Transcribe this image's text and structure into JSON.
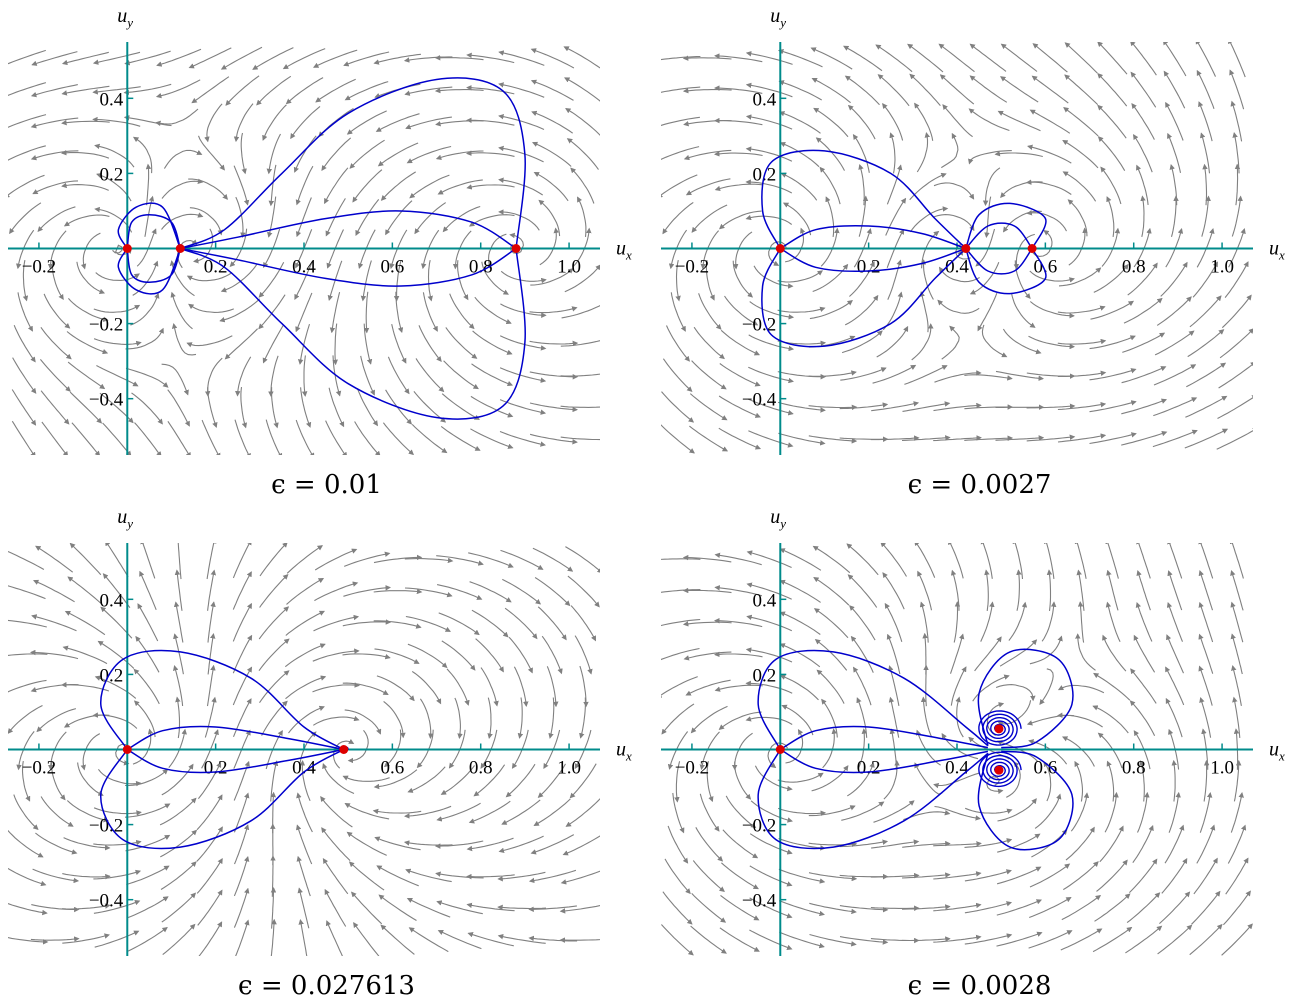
{
  "chart_data": [
    {
      "type": "stream",
      "caption": "ϵ = 0.01",
      "xlabel": "u",
      "xlabel_sub": "x",
      "ylabel": "u",
      "ylabel_sub": "y",
      "xlim": [
        -0.27,
        1.07
      ],
      "ylim": [
        -0.55,
        0.55
      ],
      "xticks": [
        -0.2,
        0.2,
        0.4,
        0.6,
        0.8,
        1.0
      ],
      "xtick_labels": [
        "−0.2",
        "0.2",
        "0.4",
        "0.6",
        "0.8",
        "1.0"
      ],
      "yticks": [
        0.4,
        0.2,
        -0.2,
        -0.4
      ],
      "ytick_labels": [
        "0.4",
        "0.2",
        "−0.2",
        "−0.4"
      ],
      "fixed_points": [
        [
          0,
          0
        ],
        [
          0.12,
          0
        ],
        [
          0.88,
          0
        ]
      ],
      "colors": {
        "axis": "#008b8b",
        "stream": "#808080",
        "separatrix": "#0000cc",
        "fixed_point": "#dd0000"
      },
      "separatrices": [
        [
          [
            0.12,
            0
          ],
          [
            0.22,
            0.05
          ],
          [
            0.35,
            0.2
          ],
          [
            0.5,
            0.36
          ],
          [
            0.7,
            0.45
          ],
          [
            0.85,
            0.42
          ],
          [
            0.9,
            0.25
          ],
          [
            0.88,
            0
          ]
        ],
        [
          [
            0.12,
            0
          ],
          [
            0.25,
            0.03
          ],
          [
            0.45,
            0.08
          ],
          [
            0.62,
            0.1
          ],
          [
            0.78,
            0.07
          ],
          [
            0.88,
            0
          ]
        ],
        [
          [
            0.12,
            0
          ],
          [
            0.25,
            -0.03
          ],
          [
            0.45,
            -0.08
          ],
          [
            0.62,
            -0.1
          ],
          [
            0.78,
            -0.07
          ],
          [
            0.88,
            0
          ]
        ],
        [
          [
            0.12,
            0
          ],
          [
            0.22,
            -0.05
          ],
          [
            0.35,
            -0.2
          ],
          [
            0.5,
            -0.36
          ],
          [
            0.7,
            -0.45
          ],
          [
            0.85,
            -0.42
          ],
          [
            0.9,
            -0.25
          ],
          [
            0.88,
            0
          ]
        ],
        [
          [
            0,
            0
          ],
          [
            -0.02,
            0.05
          ],
          [
            0.02,
            0.11
          ],
          [
            0.08,
            0.11
          ],
          [
            0.12,
            0
          ]
        ],
        [
          [
            0,
            0
          ],
          [
            -0.02,
            -0.05
          ],
          [
            0.02,
            -0.11
          ],
          [
            0.08,
            -0.11
          ],
          [
            0.12,
            0
          ]
        ],
        [
          [
            0,
            0
          ],
          [
            0.01,
            0.07
          ],
          [
            0.05,
            0.09
          ],
          [
            0.1,
            0.07
          ],
          [
            0.12,
            0
          ]
        ],
        [
          [
            0,
            0
          ],
          [
            0.01,
            -0.07
          ],
          [
            0.05,
            -0.09
          ],
          [
            0.1,
            -0.07
          ],
          [
            0.12,
            0
          ]
        ]
      ],
      "spirals": []
    },
    {
      "type": "stream",
      "caption": "ϵ = 0.0027",
      "xlabel": "u",
      "xlabel_sub": "x",
      "ylabel": "u",
      "ylabel_sub": "y",
      "xlim": [
        -0.27,
        1.07
      ],
      "ylim": [
        -0.55,
        0.55
      ],
      "xticks": [
        -0.2,
        0.2,
        0.4,
        0.6,
        0.8,
        1.0
      ],
      "xtick_labels": [
        "−0.2",
        "0.2",
        "0.4",
        "0.6",
        "0.8",
        "1.0"
      ],
      "yticks": [
        0.4,
        0.2,
        -0.2,
        -0.4
      ],
      "ytick_labels": [
        "0.4",
        "0.2",
        "−0.2",
        "−0.4"
      ],
      "fixed_points": [
        [
          0,
          0
        ],
        [
          0.42,
          0
        ],
        [
          0.57,
          0
        ]
      ],
      "colors": {
        "axis": "#008b8b",
        "stream": "#808080",
        "separatrix": "#0000cc",
        "fixed_point": "#dd0000"
      },
      "separatrices": [
        [
          [
            0,
            0
          ],
          [
            -0.04,
            0.1
          ],
          [
            -0.02,
            0.23
          ],
          [
            0.1,
            0.26
          ],
          [
            0.25,
            0.2
          ],
          [
            0.35,
            0.08
          ],
          [
            0.42,
            0
          ]
        ],
        [
          [
            0,
            0
          ],
          [
            0.08,
            0.05
          ],
          [
            0.2,
            0.06
          ],
          [
            0.32,
            0.04
          ],
          [
            0.42,
            0
          ]
        ],
        [
          [
            0,
            0
          ],
          [
            -0.04,
            -0.1
          ],
          [
            -0.02,
            -0.23
          ],
          [
            0.1,
            -0.26
          ],
          [
            0.25,
            -0.2
          ],
          [
            0.35,
            -0.08
          ],
          [
            0.42,
            0
          ]
        ],
        [
          [
            0,
            0
          ],
          [
            0.08,
            -0.05
          ],
          [
            0.2,
            -0.06
          ],
          [
            0.32,
            -0.04
          ],
          [
            0.42,
            0
          ]
        ],
        [
          [
            0.42,
            0
          ],
          [
            0.45,
            0.09
          ],
          [
            0.52,
            0.12
          ],
          [
            0.6,
            0.08
          ],
          [
            0.57,
            0
          ]
        ],
        [
          [
            0.42,
            0
          ],
          [
            0.45,
            -0.09
          ],
          [
            0.52,
            -0.12
          ],
          [
            0.6,
            -0.08
          ],
          [
            0.57,
            0
          ]
        ],
        [
          [
            0.42,
            0
          ],
          [
            0.47,
            0.06
          ],
          [
            0.53,
            0.06
          ],
          [
            0.57,
            0
          ]
        ],
        [
          [
            0.42,
            0
          ],
          [
            0.47,
            -0.06
          ],
          [
            0.53,
            -0.06
          ],
          [
            0.57,
            0
          ]
        ]
      ],
      "spirals": []
    },
    {
      "type": "stream",
      "caption": "ϵ = 0.027613",
      "xlabel": "u",
      "xlabel_sub": "x",
      "ylabel": "u",
      "ylabel_sub": "y",
      "xlim": [
        -0.27,
        1.07
      ],
      "ylim": [
        -0.55,
        0.55
      ],
      "xticks": [
        -0.2,
        0.2,
        0.4,
        0.6,
        0.8,
        1.0
      ],
      "xtick_labels": [
        "−0.2",
        "0.2",
        "0.4",
        "0.6",
        "0.8",
        "1.0"
      ],
      "yticks": [
        0.4,
        0.2,
        -0.2,
        -0.4
      ],
      "ytick_labels": [
        "0.4",
        "0.2",
        "−0.2",
        "−0.4"
      ],
      "fixed_points": [
        [
          0,
          0
        ],
        [
          0.49,
          0
        ]
      ],
      "colors": {
        "axis": "#008b8b",
        "stream": "#808080",
        "separatrix": "#0000cc",
        "fixed_point": "#dd0000"
      },
      "separatrices": [
        [
          [
            0,
            0
          ],
          [
            -0.06,
            0.12
          ],
          [
            -0.01,
            0.24
          ],
          [
            0.12,
            0.26
          ],
          [
            0.28,
            0.19
          ],
          [
            0.4,
            0.06
          ],
          [
            0.49,
            0
          ]
        ],
        [
          [
            0,
            0
          ],
          [
            0.08,
            0.05
          ],
          [
            0.2,
            0.06
          ],
          [
            0.36,
            0.03
          ],
          [
            0.49,
            0
          ]
        ],
        [
          [
            0,
            0
          ],
          [
            -0.06,
            -0.12
          ],
          [
            -0.01,
            -0.24
          ],
          [
            0.12,
            -0.26
          ],
          [
            0.28,
            -0.19
          ],
          [
            0.4,
            -0.06
          ],
          [
            0.49,
            0
          ]
        ],
        [
          [
            0,
            0
          ],
          [
            0.08,
            -0.05
          ],
          [
            0.2,
            -0.06
          ],
          [
            0.36,
            -0.03
          ],
          [
            0.49,
            0
          ]
        ]
      ],
      "spirals": [
        {
          "center": [
            0.49,
            0
          ],
          "r0": 0.02,
          "turns": 1
        }
      ]
    },
    {
      "type": "stream",
      "caption": "ϵ = 0.0028",
      "xlabel": "u",
      "xlabel_sub": "x",
      "ylabel": "u",
      "ylabel_sub": "y",
      "xlim": [
        -0.27,
        1.07
      ],
      "ylim": [
        -0.55,
        0.55
      ],
      "xticks": [
        -0.2,
        0.2,
        0.4,
        0.6,
        0.8,
        1.0
      ],
      "xtick_labels": [
        "−0.2",
        "0.2",
        "0.4",
        "0.6",
        "0.8",
        "1.0"
      ],
      "yticks": [
        0.4,
        0.2,
        -0.2,
        -0.4
      ],
      "ytick_labels": [
        "0.4",
        "0.2",
        "−0.2",
        "−0.4"
      ],
      "fixed_points": [
        [
          0,
          0
        ],
        [
          0.495,
          0.055
        ],
        [
          0.495,
          -0.055
        ]
      ],
      "colors": {
        "axis": "#008b8b",
        "stream": "#808080",
        "separatrix": "#0000cc",
        "fixed_point": "#dd0000"
      },
      "separatrices": [
        [
          [
            0,
            0
          ],
          [
            -0.05,
            0.12
          ],
          [
            -0.01,
            0.24
          ],
          [
            0.12,
            0.26
          ],
          [
            0.28,
            0.19
          ],
          [
            0.42,
            0.06
          ],
          [
            0.47,
            0.01
          ]
        ],
        [
          [
            0,
            0
          ],
          [
            0.08,
            0.05
          ],
          [
            0.2,
            0.06
          ],
          [
            0.36,
            0.03
          ],
          [
            0.47,
            0.005
          ]
        ],
        [
          [
            0,
            0
          ],
          [
            -0.05,
            -0.12
          ],
          [
            -0.01,
            -0.24
          ],
          [
            0.12,
            -0.26
          ],
          [
            0.28,
            -0.19
          ],
          [
            0.42,
            -0.06
          ],
          [
            0.47,
            -0.01
          ]
        ],
        [
          [
            0,
            0
          ],
          [
            0.08,
            -0.05
          ],
          [
            0.2,
            -0.06
          ],
          [
            0.36,
            -0.03
          ],
          [
            0.47,
            -0.005
          ]
        ],
        [
          [
            0.47,
            0.01
          ],
          [
            0.45,
            0.15
          ],
          [
            0.52,
            0.26
          ],
          [
            0.63,
            0.24
          ],
          [
            0.66,
            0.12
          ],
          [
            0.58,
            0.02
          ],
          [
            0.5,
            0.005
          ]
        ],
        [
          [
            0.47,
            -0.01
          ],
          [
            0.45,
            -0.15
          ],
          [
            0.52,
            -0.26
          ],
          [
            0.63,
            -0.24
          ],
          [
            0.66,
            -0.12
          ],
          [
            0.58,
            -0.02
          ],
          [
            0.5,
            -0.005
          ]
        ]
      ],
      "spirals": [
        {
          "center": [
            0.495,
            0.055
          ],
          "r0": 0.1,
          "turns": 5
        },
        {
          "center": [
            0.495,
            -0.055
          ],
          "r0": 0.1,
          "turns": 5
        }
      ]
    }
  ]
}
